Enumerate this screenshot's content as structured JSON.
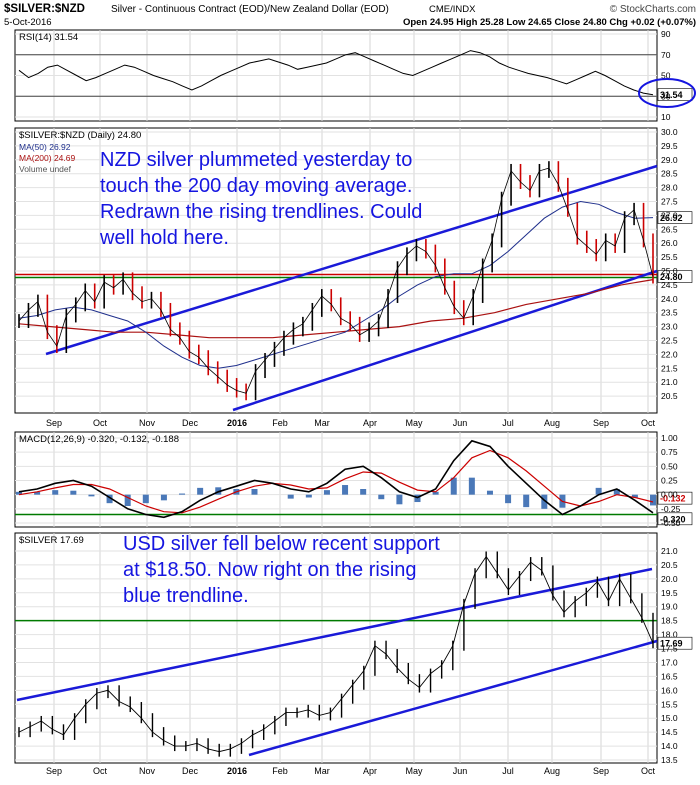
{
  "header": {
    "symbol": "$SILVER:$NZD",
    "description": "Silver - Continuous Contract (EOD)/New Zealand Dollar (EOD)",
    "exchange": "CME/INDX",
    "credit": "© StockCharts.com",
    "date": "5-Oct-2016",
    "ohlc": "Open 24.95  High 25.28  Low 24.65  Close 24.80  Chg +0.02 (+0.07%)"
  },
  "x_axis_labels": [
    "Sep",
    "Oct",
    "Nov",
    "Dec",
    "2016",
    "Feb",
    "Mar",
    "Apr",
    "May",
    "Jun",
    "Jul",
    "Aug",
    "Sep",
    "Oct"
  ],
  "colors": {
    "price": "#000000",
    "up": "#000000",
    "down": "#cc0000",
    "ma50": "#1f2f8c",
    "ma200": "#aa1111",
    "trend": "#1a1ad8",
    "support": "#007a00",
    "resistance": "#cc0000",
    "annotation": "#1515e0"
  },
  "annotations": {
    "nzd": [
      "NZD silver plummeted yesterday to",
      "touch the 200 day moving average.",
      "Redrawn the rising trendlines. Could",
      "well hold here."
    ],
    "usd": [
      "USD silver fell below recent support",
      "at $18.50. Now right on the rising",
      "blue trendline."
    ]
  },
  "chart_data": [
    {
      "type": "line",
      "title": "RSI(14) 31.54",
      "ylim": [
        10,
        90
      ],
      "y_ticks": [
        "90",
        "70",
        "50",
        "30",
        "10"
      ],
      "last_value": 31.54,
      "last_label": "31.54",
      "reference_lines": [
        70,
        30
      ],
      "series": [
        {
          "name": "RSI(14)",
          "values": [
            55,
            48,
            52,
            58,
            60,
            55,
            50,
            45,
            48,
            52,
            56,
            60,
            58,
            54,
            50,
            47,
            44,
            40,
            36,
            40,
            45,
            50,
            54,
            58,
            62,
            64,
            66,
            63,
            60,
            56,
            58,
            60,
            62,
            66,
            70,
            72,
            68,
            64,
            60,
            56,
            52,
            50,
            54,
            58,
            62,
            66,
            70,
            74,
            72,
            68,
            62,
            58,
            55,
            52,
            50,
            48,
            45,
            42,
            46,
            50,
            54,
            50,
            45,
            40,
            36,
            33,
            31.54
          ]
        }
      ]
    },
    {
      "type": "line",
      "title": "$SILVER:$NZD (Daily) 24.80",
      "legend": [
        "MA(50) 26.92",
        "MA(200) 24.69",
        "Volume undef"
      ],
      "ylim": [
        20.0,
        30.0
      ],
      "y_ticks": [
        "30.0",
        "29.5",
        "29.0",
        "28.5",
        "28.0",
        "27.5",
        "27.0",
        "26.5",
        "26.0",
        "25.5",
        "25.0",
        "24.5",
        "24.0",
        "23.5",
        "23.0",
        "22.5",
        "22.0",
        "21.5",
        "21.0",
        "20.5"
      ],
      "last_labels": {
        "price": "24.80",
        "ma50": "26.92"
      },
      "horizontal_lines": [
        {
          "value": 24.8,
          "color": "resistance"
        },
        {
          "value": 24.8,
          "color": "support"
        }
      ],
      "series": [
        {
          "name": "$SILVER:$NZD",
          "values": [
            23.2,
            23.6,
            23.9,
            22.8,
            22.3,
            23.4,
            23.8,
            24.3,
            23.9,
            24.6,
            24.4,
            24.7,
            24.2,
            23.9,
            24.0,
            23.6,
            22.9,
            22.6,
            22.1,
            21.9,
            21.5,
            21.2,
            20.9,
            20.7,
            20.6,
            21.4,
            21.8,
            22.2,
            22.6,
            22.9,
            23.1,
            23.6,
            24.1,
            23.8,
            23.3,
            23.1,
            22.7,
            22.9,
            23.2,
            24.1,
            25.1,
            25.6,
            25.9,
            25.7,
            25.2,
            24.4,
            23.7,
            23.3,
            24.1,
            25.2,
            26.1,
            27.6,
            28.6,
            28.2,
            27.9,
            28.6,
            28.7,
            28.1,
            27.2,
            26.2,
            25.9,
            25.6,
            26.1,
            25.9,
            26.9,
            27.2,
            26.1,
            24.8
          ]
        },
        {
          "name": "MA(50)",
          "values": [
            23.3,
            23.4,
            23.6,
            23.7,
            23.6,
            23.4,
            23.2,
            22.8,
            22.3,
            21.9,
            21.6,
            21.5,
            21.6,
            21.8,
            22.0,
            22.2,
            22.4,
            22.6,
            22.8,
            23.2,
            23.6,
            24.1,
            24.5,
            24.8,
            24.9,
            24.9,
            25.2,
            25.7,
            26.3,
            26.9,
            27.3,
            27.5,
            27.4,
            27.1,
            26.9,
            26.92
          ]
        },
        {
          "name": "MA(200)",
          "values": [
            23.1,
            23.0,
            22.9,
            22.8,
            22.8,
            22.7,
            22.6,
            22.6,
            22.6,
            22.7,
            22.8,
            22.9,
            23.0,
            23.2,
            23.3,
            23.5,
            23.8,
            24.0,
            24.2,
            24.5,
            24.69
          ]
        }
      ]
    },
    {
      "type": "line",
      "title": "MACD(12,26,9) -0.320, -0.132, -0.188",
      "ylim": [
        -0.5,
        1.0
      ],
      "y_ticks": [
        "1.00",
        "0.75",
        "0.50",
        "0.25",
        "0.00",
        "-0.25",
        "-0.50"
      ],
      "last_labels": [
        "-0.132",
        "-0.320"
      ],
      "series": [
        {
          "name": "MACD",
          "values": [
            0.05,
            0.1,
            0.2,
            0.25,
            0.15,
            -0.05,
            -0.25,
            -0.35,
            -0.4,
            -0.3,
            -0.1,
            0.05,
            0.15,
            0.25,
            0.2,
            0.1,
            0.05,
            0.2,
            0.45,
            0.5,
            0.3,
            0.05,
            -0.05,
            0.1,
            0.6,
            0.95,
            0.85,
            0.5,
            0.2,
            -0.1,
            -0.35,
            -0.2,
            0.0,
            0.1,
            -0.1,
            -0.32
          ]
        },
        {
          "name": "Signal",
          "values": [
            0.0,
            0.05,
            0.12,
            0.18,
            0.18,
            0.1,
            -0.05,
            -0.2,
            -0.3,
            -0.32,
            -0.22,
            -0.08,
            0.05,
            0.15,
            0.2,
            0.17,
            0.1,
            0.12,
            0.28,
            0.4,
            0.38,
            0.22,
            0.08,
            0.05,
            0.3,
            0.65,
            0.78,
            0.65,
            0.42,
            0.15,
            -0.12,
            -0.2,
            -0.12,
            0.0,
            -0.05,
            -0.13
          ]
        }
      ]
    },
    {
      "type": "line",
      "title": "$SILVER 17.69",
      "ylim": [
        13.5,
        21.5
      ],
      "y_ticks": [
        "21.0",
        "20.5",
        "20.0",
        "19.5",
        "19.0",
        "18.5",
        "18.0",
        "17.5",
        "17.0",
        "16.5",
        "16.0",
        "15.5",
        "15.0",
        "14.5",
        "14.0",
        "13.5"
      ],
      "last_label": "17.69",
      "horizontal_lines": [
        {
          "value": 18.5,
          "color": "support"
        }
      ],
      "series": [
        {
          "name": "$SILVER",
          "values": [
            14.5,
            14.7,
            14.9,
            14.6,
            14.4,
            15.0,
            15.5,
            15.9,
            16.0,
            15.6,
            15.4,
            15.0,
            14.5,
            14.2,
            14.0,
            14.0,
            14.1,
            13.9,
            13.8,
            13.9,
            14.1,
            14.4,
            14.6,
            14.9,
            15.2,
            15.2,
            15.3,
            15.1,
            15.2,
            15.7,
            16.2,
            16.7,
            17.6,
            17.3,
            16.8,
            16.4,
            16.1,
            16.6,
            16.9,
            17.6,
            19.1,
            20.2,
            20.8,
            20.2,
            19.6,
            20.1,
            20.6,
            20.3,
            19.4,
            18.8,
            19.2,
            19.5,
            19.9,
            19.2,
            20.0,
            19.3,
            18.6,
            17.69
          ]
        }
      ]
    }
  ]
}
